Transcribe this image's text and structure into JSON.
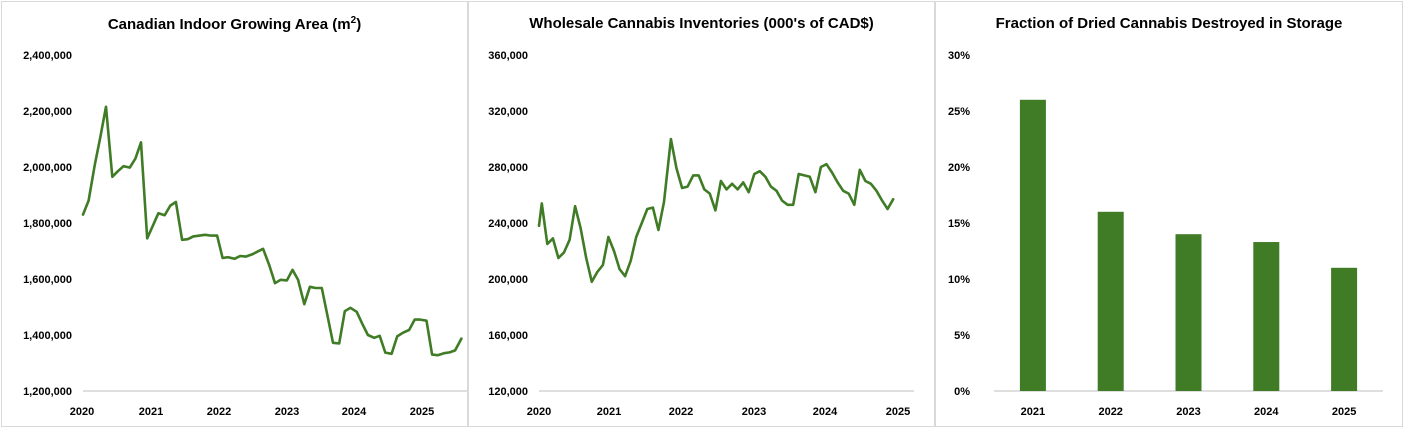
{
  "colors": {
    "series": "#3f7c25",
    "axis": "#bfbfbf"
  },
  "chart_data": [
    {
      "type": "line",
      "title": "Canadian Indoor Growing Area (m",
      "title_sup": "2",
      "title_end": ")",
      "ylim": [
        1200000,
        2400000
      ],
      "y_ticks": [
        1200000,
        1400000,
        1600000,
        1800000,
        2000000,
        2200000,
        2400000
      ],
      "y_tick_labels": [
        "1,200,000",
        "1,400,000",
        "1,600,000",
        "1,800,000",
        "2,000,000",
        "2,200,000",
        "2,400,000"
      ],
      "xlim": [
        2020.0,
        2025.6
      ],
      "x_tick_labels": [
        "2020",
        "2021",
        "2022",
        "2023",
        "2024",
        "2025"
      ],
      "series": [
        {
          "values": [
            [
              2020.0,
              1830000
            ],
            [
              2020.08,
              1880000
            ],
            [
              2020.17,
              2010000
            ],
            [
              2020.25,
              2110000
            ],
            [
              2020.33,
              2215000
            ],
            [
              2020.42,
              1965000
            ],
            [
              2020.5,
              1985000
            ],
            [
              2020.58,
              2003000
            ],
            [
              2020.67,
              1998000
            ],
            [
              2020.75,
              2030000
            ],
            [
              2020.83,
              2088000
            ],
            [
              2020.92,
              1745000
            ],
            [
              2021.0,
              1790000
            ],
            [
              2021.08,
              1835000
            ],
            [
              2021.17,
              1828000
            ],
            [
              2021.25,
              1862000
            ],
            [
              2021.33,
              1875000
            ],
            [
              2021.42,
              1740000
            ],
            [
              2021.5,
              1742000
            ],
            [
              2021.58,
              1752000
            ],
            [
              2021.67,
              1755000
            ],
            [
              2021.75,
              1758000
            ],
            [
              2021.83,
              1755000
            ],
            [
              2021.92,
              1755000
            ],
            [
              2022.0,
              1675000
            ],
            [
              2022.08,
              1678000
            ],
            [
              2022.17,
              1672000
            ],
            [
              2022.25,
              1682000
            ],
            [
              2022.33,
              1680000
            ],
            [
              2022.42,
              1688000
            ],
            [
              2022.5,
              1698000
            ],
            [
              2022.58,
              1708000
            ],
            [
              2022.67,
              1648000
            ],
            [
              2022.75,
              1585000
            ],
            [
              2022.83,
              1597000
            ],
            [
              2022.92,
              1595000
            ],
            [
              2023.0,
              1633000
            ],
            [
              2023.08,
              1598000
            ],
            [
              2023.17,
              1510000
            ],
            [
              2023.25,
              1572000
            ],
            [
              2023.33,
              1568000
            ],
            [
              2023.42,
              1568000
            ],
            [
              2023.5,
              1470000
            ],
            [
              2023.58,
              1372000
            ],
            [
              2023.67,
              1370000
            ],
            [
              2023.75,
              1485000
            ],
            [
              2023.83,
              1497000
            ],
            [
              2023.92,
              1483000
            ],
            [
              2024.0,
              1440000
            ],
            [
              2024.08,
              1400000
            ],
            [
              2024.17,
              1390000
            ],
            [
              2024.25,
              1397000
            ],
            [
              2024.33,
              1337000
            ],
            [
              2024.42,
              1333000
            ],
            [
              2024.5,
              1395000
            ],
            [
              2024.58,
              1408000
            ],
            [
              2024.67,
              1418000
            ],
            [
              2024.75,
              1455000
            ],
            [
              2024.83,
              1455000
            ],
            [
              2024.92,
              1451000
            ],
            [
              2025.0,
              1330000
            ],
            [
              2025.08,
              1328000
            ],
            [
              2025.17,
              1335000
            ],
            [
              2025.25,
              1338000
            ],
            [
              2025.33,
              1345000
            ],
            [
              2025.42,
              1387000
            ]
          ]
        }
      ]
    },
    {
      "type": "line",
      "title": "Wholesale Cannabis Inventories (000's of CAD$)",
      "ylim": [
        120000,
        360000
      ],
      "y_ticks": [
        120000,
        160000,
        200000,
        240000,
        280000,
        320000,
        360000
      ],
      "y_tick_labels": [
        "120,000",
        "160,000",
        "200,000",
        "240,000",
        "280,000",
        "320,000",
        "360,000"
      ],
      "xlim": [
        2020.0,
        2025.4
      ],
      "x_tick_labels": [
        "2020",
        "2021",
        "2022",
        "2023",
        "2024",
        "2025"
      ],
      "series": [
        {
          "values": [
            [
              2020.0,
              238000
            ],
            [
              2020.04,
              254000
            ],
            [
              2020.12,
              225000
            ],
            [
              2020.2,
              229000
            ],
            [
              2020.28,
              215000
            ],
            [
              2020.36,
              219000
            ],
            [
              2020.44,
              228000
            ],
            [
              2020.52,
              252000
            ],
            [
              2020.6,
              236000
            ],
            [
              2020.68,
              215000
            ],
            [
              2020.76,
              198000
            ],
            [
              2020.84,
              205000
            ],
            [
              2020.92,
              210000
            ],
            [
              2021.0,
              230000
            ],
            [
              2021.08,
              220000
            ],
            [
              2021.16,
              207000
            ],
            [
              2021.24,
              202000
            ],
            [
              2021.32,
              213000
            ],
            [
              2021.4,
              230000
            ],
            [
              2021.48,
              240000
            ],
            [
              2021.56,
              250000
            ],
            [
              2021.64,
              251000
            ],
            [
              2021.72,
              235000
            ],
            [
              2021.8,
              255000
            ],
            [
              2021.9,
              300000
            ],
            [
              2021.98,
              279000
            ],
            [
              2022.06,
              265000
            ],
            [
              2022.14,
              266000
            ],
            [
              2022.22,
              274000
            ],
            [
              2022.3,
              274000
            ],
            [
              2022.38,
              264000
            ],
            [
              2022.46,
              261000
            ],
            [
              2022.54,
              249000
            ],
            [
              2022.62,
              270000
            ],
            [
              2022.7,
              264000
            ],
            [
              2022.78,
              268000
            ],
            [
              2022.86,
              264000
            ],
            [
              2022.94,
              269000
            ],
            [
              2023.02,
              262000
            ],
            [
              2023.1,
              275000
            ],
            [
              2023.18,
              277000
            ],
            [
              2023.26,
              273000
            ],
            [
              2023.34,
              266000
            ],
            [
              2023.42,
              263000
            ],
            [
              2023.5,
              256000
            ],
            [
              2023.58,
              253000
            ],
            [
              2023.66,
              253000
            ],
            [
              2023.74,
              275000
            ],
            [
              2023.82,
              274000
            ],
            [
              2023.9,
              273000
            ],
            [
              2023.98,
              262000
            ],
            [
              2024.06,
              280000
            ],
            [
              2024.14,
              282000
            ],
            [
              2024.22,
              276000
            ],
            [
              2024.3,
              269000
            ],
            [
              2024.38,
              263000
            ],
            [
              2024.46,
              261000
            ],
            [
              2024.54,
              253000
            ],
            [
              2024.62,
              278000
            ],
            [
              2024.7,
              270000
            ],
            [
              2024.78,
              268000
            ],
            [
              2024.86,
              263000
            ],
            [
              2024.94,
              256000
            ],
            [
              2025.02,
              250000
            ],
            [
              2025.1,
              257000
            ]
          ]
        }
      ]
    },
    {
      "type": "bar",
      "title": "Fraction of Dried Cannabis Destroyed in Storage",
      "categories": [
        "2021",
        "2022",
        "2023",
        "2024",
        "2025"
      ],
      "values": [
        0.26,
        0.16,
        0.14,
        0.133,
        0.11
      ],
      "ylim": [
        0,
        0.3
      ],
      "y_ticks": [
        0,
        0.05,
        0.1,
        0.15,
        0.2,
        0.25,
        0.3
      ],
      "y_tick_labels": [
        "0%",
        "5%",
        "10%",
        "15%",
        "20%",
        "25%",
        "30%"
      ]
    }
  ]
}
